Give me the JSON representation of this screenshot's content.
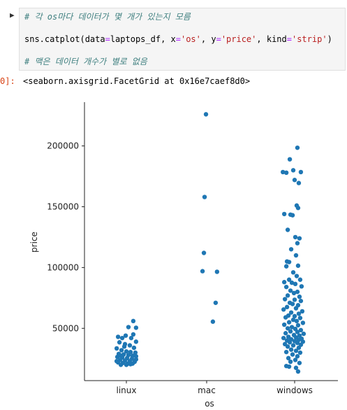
{
  "notebook": {
    "cell_input": {
      "lines": [
        {
          "type": "comment",
          "text": "# 각 os마다 데이터가 몇 개가 있는지 모름"
        },
        {
          "type": "code",
          "parts": [
            {
              "t": "plain",
              "v": "sns.catplot(data"
            },
            {
              "t": "op",
              "v": "="
            },
            {
              "t": "plain",
              "v": "laptops_df, x"
            },
            {
              "t": "op",
              "v": "="
            },
            {
              "t": "str",
              "v": "'os'"
            },
            {
              "t": "plain",
              "v": ", y"
            },
            {
              "t": "op",
              "v": "="
            },
            {
              "t": "str",
              "v": "'price'"
            },
            {
              "t": "plain",
              "v": ", kind"
            },
            {
              "t": "op",
              "v": "="
            },
            {
              "t": "str",
              "v": "'strip'"
            },
            {
              "t": "plain",
              "v": ")"
            }
          ]
        },
        {
          "type": "comment",
          "text": "# 맥은 데이터 개수가 별로 없음"
        }
      ]
    },
    "output_prompt": "0]:",
    "output_text": "<seaborn.axisgrid.FacetGrid at 0x16e7caef8d0>"
  },
  "chart_data": {
    "type": "scatter",
    "kind": "strip",
    "xlabel": "os",
    "ylabel": "price",
    "categories": [
      "linux",
      "mac",
      "windows"
    ],
    "yticks": [
      50000,
      100000,
      150000,
      200000
    ],
    "ytick_labels": [
      "50000",
      "100000",
      "150000",
      "200000"
    ],
    "ylim": [
      7000,
      236000
    ],
    "point_color": "#1f77b4",
    "points": {
      "linux": [
        {
          "j": 0.1,
          "y": 56000
        },
        {
          "j": 0.03,
          "y": 51000
        },
        {
          "j": 0.14,
          "y": 50500
        },
        {
          "j": -0.12,
          "y": 43000
        },
        {
          "j": -0.06,
          "y": 42000
        },
        {
          "j": -0.01,
          "y": 44000
        },
        {
          "j": 0.07,
          "y": 42000
        },
        {
          "j": 0.14,
          "y": 39000
        },
        {
          "j": -0.1,
          "y": 38500
        },
        {
          "j": -0.02,
          "y": 37000
        },
        {
          "j": 0.05,
          "y": 36000
        },
        {
          "j": 0.11,
          "y": 34000
        },
        {
          "j": -0.14,
          "y": 33500
        },
        {
          "j": -0.07,
          "y": 32000
        },
        {
          "j": 0.0,
          "y": 31000
        },
        {
          "j": 0.06,
          "y": 30500
        },
        {
          "j": 0.13,
          "y": 30000
        },
        {
          "j": -0.11,
          "y": 29000
        },
        {
          "j": -0.04,
          "y": 28500
        },
        {
          "j": 0.03,
          "y": 28000
        },
        {
          "j": 0.09,
          "y": 27500
        },
        {
          "j": -0.13,
          "y": 26500
        },
        {
          "j": -0.06,
          "y": 26000
        },
        {
          "j": 0.01,
          "y": 25500
        },
        {
          "j": 0.08,
          "y": 25000
        },
        {
          "j": 0.14,
          "y": 24500
        },
        {
          "j": -0.09,
          "y": 24000
        },
        {
          "j": -0.02,
          "y": 23500
        },
        {
          "j": 0.05,
          "y": 23000
        },
        {
          "j": 0.12,
          "y": 22500
        },
        {
          "j": -0.12,
          "y": 22000
        },
        {
          "j": -0.05,
          "y": 21500
        },
        {
          "j": 0.02,
          "y": 21000
        },
        {
          "j": 0.09,
          "y": 21000
        },
        {
          "j": -0.08,
          "y": 20000
        },
        {
          "j": 0.0,
          "y": 20000
        },
        {
          "j": 0.06,
          "y": 20500
        },
        {
          "j": -0.14,
          "y": 23000
        },
        {
          "j": 0.14,
          "y": 27000
        },
        {
          "j": -0.03,
          "y": 35000
        },
        {
          "j": 0.1,
          "y": 45000
        },
        {
          "j": -0.08,
          "y": 27500
        }
      ],
      "mac": [
        {
          "j": -0.01,
          "y": 226000
        },
        {
          "j": -0.03,
          "y": 158000
        },
        {
          "j": -0.04,
          "y": 112000
        },
        {
          "j": -0.06,
          "y": 97000
        },
        {
          "j": 0.15,
          "y": 96500
        },
        {
          "j": 0.13,
          "y": 71000
        },
        {
          "j": 0.09,
          "y": 55500
        }
      ],
      "windows": [
        {
          "j": 0.04,
          "y": 198500
        },
        {
          "j": -0.07,
          "y": 189000
        },
        {
          "j": -0.02,
          "y": 180000
        },
        {
          "j": -0.17,
          "y": 178500
        },
        {
          "j": -0.12,
          "y": 178000
        },
        {
          "j": 0.09,
          "y": 178500
        },
        {
          "j": 0.0,
          "y": 172000
        },
        {
          "j": 0.06,
          "y": 169500
        },
        {
          "j": 0.03,
          "y": 151000
        },
        {
          "j": 0.05,
          "y": 149000
        },
        {
          "j": -0.15,
          "y": 144000
        },
        {
          "j": -0.06,
          "y": 143500
        },
        {
          "j": -0.03,
          "y": 143000
        },
        {
          "j": -0.1,
          "y": 131000
        },
        {
          "j": 0.01,
          "y": 125000
        },
        {
          "j": 0.07,
          "y": 124000
        },
        {
          "j": 0.04,
          "y": 120000
        },
        {
          "j": -0.05,
          "y": 115000
        },
        {
          "j": 0.02,
          "y": 110000
        },
        {
          "j": -0.11,
          "y": 105000
        },
        {
          "j": -0.08,
          "y": 104500
        },
        {
          "j": -0.12,
          "y": 101000
        },
        {
          "j": 0.05,
          "y": 101500
        },
        {
          "j": -0.02,
          "y": 96000
        },
        {
          "j": 0.03,
          "y": 93000
        },
        {
          "j": -0.08,
          "y": 90000
        },
        {
          "j": 0.08,
          "y": 90000
        },
        {
          "j": -0.15,
          "y": 88000
        },
        {
          "j": -0.04,
          "y": 87500
        },
        {
          "j": 0.01,
          "y": 86500
        },
        {
          "j": -0.12,
          "y": 84000
        },
        {
          "j": 0.1,
          "y": 84500
        },
        {
          "j": -0.06,
          "y": 81000
        },
        {
          "j": 0.04,
          "y": 80000
        },
        {
          "j": -0.01,
          "y": 79000
        },
        {
          "j": -0.1,
          "y": 77000
        },
        {
          "j": 0.07,
          "y": 76000
        },
        {
          "j": -0.14,
          "y": 74000
        },
        {
          "j": 0.0,
          "y": 73500
        },
        {
          "j": 0.09,
          "y": 72500
        },
        {
          "j": -0.07,
          "y": 71000
        },
        {
          "j": -0.03,
          "y": 70000
        },
        {
          "j": 0.05,
          "y": 69000
        },
        {
          "j": -0.11,
          "y": 67500
        },
        {
          "j": 0.02,
          "y": 66500
        },
        {
          "j": -0.16,
          "y": 65500
        },
        {
          "j": 0.11,
          "y": 64000
        },
        {
          "j": -0.05,
          "y": 63000
        },
        {
          "j": 0.06,
          "y": 62000
        },
        {
          "j": -0.09,
          "y": 60500
        },
        {
          "j": 0.0,
          "y": 60000
        },
        {
          "j": -0.13,
          "y": 59000
        },
        {
          "j": 0.08,
          "y": 58500
        },
        {
          "j": -0.02,
          "y": 57000
        },
        {
          "j": 0.03,
          "y": 56000
        },
        {
          "j": -0.08,
          "y": 55000
        },
        {
          "j": 0.12,
          "y": 54500
        },
        {
          "j": -0.15,
          "y": 53000
        },
        {
          "j": 0.05,
          "y": 52500
        },
        {
          "j": -0.04,
          "y": 51000
        },
        {
          "j": -0.1,
          "y": 50000
        },
        {
          "j": 0.01,
          "y": 49500
        },
        {
          "j": 0.09,
          "y": 48500
        },
        {
          "j": -0.06,
          "y": 47500
        },
        {
          "j": 0.04,
          "y": 47000
        },
        {
          "j": -0.13,
          "y": 46000
        },
        {
          "j": 0.13,
          "y": 45500
        },
        {
          "j": -0.01,
          "y": 44500
        },
        {
          "j": 0.07,
          "y": 44000
        },
        {
          "j": -0.09,
          "y": 43000
        },
        {
          "j": 0.02,
          "y": 42500
        },
        {
          "j": -0.16,
          "y": 42000
        },
        {
          "j": 0.1,
          "y": 41500
        },
        {
          "j": -0.05,
          "y": 41000
        },
        {
          "j": 0.06,
          "y": 40500
        },
        {
          "j": -0.11,
          "y": 40000
        },
        {
          "j": 0.0,
          "y": 39500
        },
        {
          "j": 0.12,
          "y": 39000
        },
        {
          "j": -0.07,
          "y": 38500
        },
        {
          "j": 0.04,
          "y": 38000
        },
        {
          "j": -0.14,
          "y": 37000
        },
        {
          "j": 0.09,
          "y": 36500
        },
        {
          "j": -0.02,
          "y": 36000
        },
        {
          "j": -0.1,
          "y": 35000
        },
        {
          "j": 0.06,
          "y": 34000
        },
        {
          "j": -0.05,
          "y": 32500
        },
        {
          "j": 0.02,
          "y": 31500
        },
        {
          "j": -0.12,
          "y": 30500
        },
        {
          "j": 0.08,
          "y": 30000
        },
        {
          "j": -0.03,
          "y": 28500
        },
        {
          "j": 0.04,
          "y": 27000
        },
        {
          "j": -0.09,
          "y": 25500
        },
        {
          "j": 0.01,
          "y": 24000
        },
        {
          "j": -0.06,
          "y": 22500
        },
        {
          "j": 0.07,
          "y": 21500
        },
        {
          "j": -0.12,
          "y": 19000
        },
        {
          "j": -0.08,
          "y": 18500
        },
        {
          "j": 0.02,
          "y": 17500
        },
        {
          "j": 0.05,
          "y": 14500
        }
      ]
    }
  }
}
